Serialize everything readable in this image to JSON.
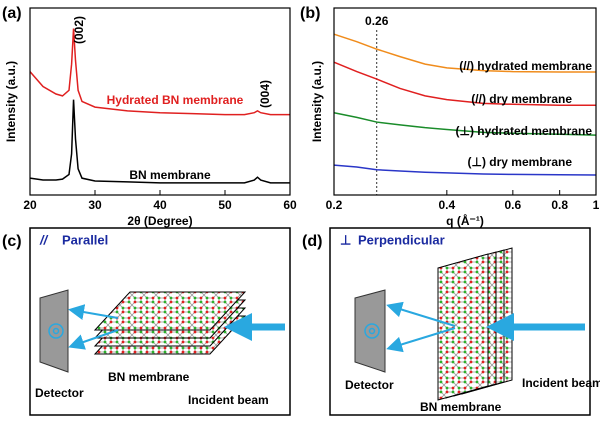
{
  "chart_data": [
    {
      "type": "line",
      "panel_label": "(a)",
      "x_label": "2θ (Degree)",
      "y_label": "Intensity (a.u.)",
      "x": [
        20,
        22,
        24,
        25,
        26,
        26.4,
        26.7,
        27,
        27.4,
        28,
        30,
        35,
        40,
        45,
        50,
        53,
        54.5,
        55,
        55.5,
        57,
        60
      ],
      "series": [
        {
          "name": "Hydrated BN membrane",
          "color": "#e02020",
          "values": [
            66,
            58,
            54,
            53,
            56,
            70,
            89,
            72,
            56,
            50,
            47,
            45,
            44,
            43.5,
            43,
            43,
            44,
            45,
            44,
            43,
            43
          ]
        },
        {
          "name": "BN membrane",
          "color": "#000000",
          "values": [
            9,
            8,
            8,
            8.5,
            11,
            22,
            51,
            30,
            14,
            9,
            7.5,
            7,
            6.5,
            6.5,
            6.5,
            6.5,
            8,
            9.5,
            8,
            6.5,
            6.5
          ]
        }
      ],
      "annotations": [
        "(002)",
        "(004)"
      ],
      "xlim": [
        20,
        60
      ],
      "xticks": [
        20,
        30,
        40,
        50,
        60
      ],
      "ylim": [
        0,
        100
      ]
    },
    {
      "type": "line",
      "panel_label": "(b)",
      "x_label": "q (Å⁻¹)",
      "y_label": "Intensity (a.u.)",
      "xscale": "log",
      "x": [
        0.2,
        0.23,
        0.26,
        0.3,
        0.35,
        0.4,
        0.5,
        0.6,
        0.8,
        1
      ],
      "series": [
        {
          "name": "(//) hydrated membrane",
          "color": "#f08c1c",
          "values": [
            86,
            82,
            78,
            74,
            70,
            68,
            66.5,
            66,
            65.8,
            65.8
          ]
        },
        {
          "name": "(//) dry membrane",
          "color": "#e02020",
          "values": [
            71,
            66,
            62,
            57,
            53,
            51,
            49,
            48.5,
            48,
            48
          ]
        },
        {
          "name": "(⊥) hydrated membrane",
          "color": "#1a8c2a",
          "values": [
            44,
            41.5,
            39,
            37.5,
            36,
            35,
            33.5,
            33,
            32.5,
            32
          ]
        },
        {
          "name": "(⊥) dry membrane",
          "color": "#2a36c8",
          "values": [
            16,
            15,
            13.5,
            12.8,
            12.2,
            11.8,
            11.2,
            11,
            10.8,
            10.7
          ]
        }
      ],
      "vline": 0.26,
      "xlim": [
        0.2,
        1
      ],
      "xticks": [
        0.2,
        0.4,
        0.6,
        0.8,
        1
      ],
      "ylim": [
        0,
        100
      ]
    }
  ],
  "diagrams": [
    {
      "panel_label": "(c)",
      "symbol": "//",
      "title": "Parallel",
      "detector": "Detector",
      "sample": "BN membrane",
      "beam": "Incident beam"
    },
    {
      "panel_label": "(d)",
      "symbol": "⊥",
      "title": "Perpendicular",
      "detector": "Detector",
      "sample": "BN membrane",
      "beam": "Incident beam"
    }
  ]
}
